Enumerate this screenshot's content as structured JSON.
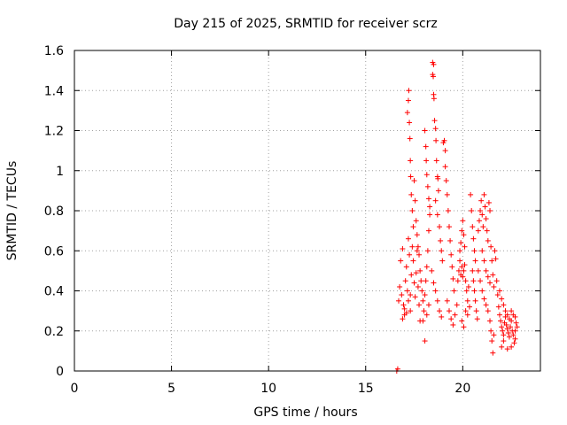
{
  "chart_data": {
    "type": "scatter",
    "title": "Day 215 of 2025, SRMTID for receiver scrz",
    "xlabel": "GPS time / hours",
    "ylabel": "SRMTID / TECUs",
    "xlim": [
      0,
      24
    ],
    "ylim": [
      0,
      1.6
    ],
    "xticks": [
      0,
      5,
      10,
      15,
      20
    ],
    "yticks": [
      0,
      0.2,
      0.4,
      0.6,
      0.8,
      1,
      1.2,
      1.4,
      1.6
    ],
    "xtick_labels": [
      "0",
      "5",
      "10",
      "15",
      "20"
    ],
    "ytick_labels": [
      "0",
      "0.2",
      "0.4",
      "0.6",
      "0.8",
      "1",
      "1.2",
      "1.4",
      "1.6"
    ],
    "grid": true,
    "marker": "+",
    "color": "#ff0000",
    "series": [
      {
        "name": "SRMTID",
        "points": [
          [
            16.6,
            0.0
          ],
          [
            16.65,
            0.01
          ],
          [
            16.7,
            0.35
          ],
          [
            16.75,
            0.42
          ],
          [
            16.8,
            0.55
          ],
          [
            16.85,
            0.38
          ],
          [
            16.9,
            0.61
          ],
          [
            16.95,
            0.33
          ],
          [
            17.0,
            0.28
          ],
          [
            17.05,
            0.45
          ],
          [
            17.1,
            0.52
          ],
          [
            17.15,
            0.4
          ],
          [
            17.2,
            0.66
          ],
          [
            17.25,
            0.58
          ],
          [
            17.3,
            0.3
          ],
          [
            17.35,
            0.48
          ],
          [
            17.4,
            0.62
          ],
          [
            17.45,
            0.55
          ],
          [
            17.5,
            0.44
          ],
          [
            17.55,
            0.37
          ],
          [
            17.6,
            0.49
          ],
          [
            17.65,
            0.6
          ],
          [
            17.7,
            0.42
          ],
          [
            17.75,
            0.33
          ],
          [
            17.8,
            0.25
          ],
          [
            16.9,
            0.26
          ],
          [
            17.0,
            0.31
          ],
          [
            17.1,
            0.29
          ],
          [
            17.2,
            0.35
          ],
          [
            17.3,
            0.38
          ],
          [
            17.15,
            1.29
          ],
          [
            17.2,
            1.35
          ],
          [
            17.22,
            1.4
          ],
          [
            17.25,
            1.24
          ],
          [
            17.28,
            1.16
          ],
          [
            17.3,
            1.05
          ],
          [
            17.32,
            0.97
          ],
          [
            17.35,
            0.88
          ],
          [
            17.4,
            0.8
          ],
          [
            17.45,
            0.72
          ],
          [
            17.5,
            0.95
          ],
          [
            17.55,
            0.85
          ],
          [
            17.6,
            0.75
          ],
          [
            17.65,
            0.68
          ],
          [
            17.7,
            0.62
          ],
          [
            17.75,
            0.58
          ],
          [
            17.8,
            0.5
          ],
          [
            17.85,
            0.45
          ],
          [
            17.9,
            0.4
          ],
          [
            17.95,
            0.35
          ],
          [
            18.0,
            0.3
          ],
          [
            18.05,
            0.38
          ],
          [
            18.1,
            0.45
          ],
          [
            18.15,
            0.52
          ],
          [
            18.2,
            0.6
          ],
          [
            18.25,
            0.7
          ],
          [
            18.3,
            0.82
          ],
          [
            18.05,
            1.2
          ],
          [
            18.1,
            1.12
          ],
          [
            18.12,
            1.05
          ],
          [
            18.15,
            0.98
          ],
          [
            18.2,
            0.92
          ],
          [
            18.25,
            0.86
          ],
          [
            18.3,
            0.78
          ],
          [
            17.95,
            0.25
          ],
          [
            18.05,
            0.15
          ],
          [
            18.15,
            0.28
          ],
          [
            18.25,
            0.33
          ],
          [
            18.45,
            1.54
          ],
          [
            18.5,
            1.53
          ],
          [
            18.45,
            1.48
          ],
          [
            18.48,
            1.47
          ],
          [
            18.5,
            1.38
          ],
          [
            18.52,
            1.36
          ],
          [
            18.55,
            1.25
          ],
          [
            18.6,
            1.21
          ],
          [
            18.62,
            1.15
          ],
          [
            18.65,
            1.05
          ],
          [
            18.7,
            0.97
          ],
          [
            18.72,
            0.96
          ],
          [
            18.75,
            0.9
          ],
          [
            18.6,
            0.85
          ],
          [
            18.7,
            0.78
          ],
          [
            18.8,
            0.72
          ],
          [
            18.85,
            0.65
          ],
          [
            18.9,
            0.6
          ],
          [
            18.95,
            0.55
          ],
          [
            18.4,
            0.5
          ],
          [
            18.5,
            0.44
          ],
          [
            18.6,
            0.4
          ],
          [
            18.7,
            0.35
          ],
          [
            18.8,
            0.3
          ],
          [
            18.9,
            0.27
          ],
          [
            19.0,
            1.14
          ],
          [
            19.05,
            1.15
          ],
          [
            19.1,
            1.1
          ],
          [
            19.1,
            1.02
          ],
          [
            19.15,
            0.95
          ],
          [
            19.2,
            0.88
          ],
          [
            19.25,
            0.8
          ],
          [
            19.3,
            0.72
          ],
          [
            19.35,
            0.65
          ],
          [
            19.4,
            0.58
          ],
          [
            19.45,
            0.52
          ],
          [
            19.5,
            0.46
          ],
          [
            19.55,
            0.4
          ],
          [
            19.2,
            0.35
          ],
          [
            19.3,
            0.3
          ],
          [
            19.4,
            0.26
          ],
          [
            19.5,
            0.23
          ],
          [
            19.6,
            0.28
          ],
          [
            19.7,
            0.33
          ],
          [
            19.75,
            0.45
          ],
          [
            19.8,
            0.5
          ],
          [
            19.85,
            0.55
          ],
          [
            19.9,
            0.48
          ],
          [
            19.95,
            0.52
          ],
          [
            20.0,
            0.47
          ],
          [
            20.05,
            0.5
          ],
          [
            20.1,
            0.53
          ],
          [
            20.15,
            0.45
          ],
          [
            20.2,
            0.4
          ],
          [
            20.25,
            0.35
          ],
          [
            20.3,
            0.42
          ],
          [
            19.85,
            0.6
          ],
          [
            19.9,
            0.64
          ],
          [
            19.95,
            0.7
          ],
          [
            20.0,
            0.75
          ],
          [
            20.05,
            0.68
          ],
          [
            20.1,
            0.62
          ],
          [
            19.95,
            0.25
          ],
          [
            20.05,
            0.22
          ],
          [
            20.15,
            0.3
          ],
          [
            20.25,
            0.28
          ],
          [
            20.35,
            0.32
          ],
          [
            20.4,
            0.88
          ],
          [
            20.45,
            0.8
          ],
          [
            20.5,
            0.72
          ],
          [
            20.55,
            0.66
          ],
          [
            20.6,
            0.6
          ],
          [
            20.65,
            0.55
          ],
          [
            20.5,
            0.5
          ],
          [
            20.55,
            0.45
          ],
          [
            20.6,
            0.4
          ],
          [
            20.65,
            0.35
          ],
          [
            20.7,
            0.3
          ],
          [
            20.75,
            0.26
          ],
          [
            20.8,
            0.7
          ],
          [
            20.85,
            0.75
          ],
          [
            20.9,
            0.8
          ],
          [
            20.95,
            0.85
          ],
          [
            21.0,
            0.78
          ],
          [
            21.05,
            0.72
          ],
          [
            21.1,
            0.88
          ],
          [
            21.15,
            0.82
          ],
          [
            21.2,
            0.76
          ],
          [
            21.25,
            0.7
          ],
          [
            21.3,
            0.65
          ],
          [
            21.35,
            0.84
          ],
          [
            21.4,
            0.8
          ],
          [
            21.45,
            0.62
          ],
          [
            21.5,
            0.55
          ],
          [
            21.55,
            0.48
          ],
          [
            21.6,
            0.42
          ],
          [
            20.8,
            0.5
          ],
          [
            20.9,
            0.45
          ],
          [
            21.0,
            0.4
          ],
          [
            21.1,
            0.36
          ],
          [
            21.2,
            0.33
          ],
          [
            21.3,
            0.3
          ],
          [
            21.0,
            0.6
          ],
          [
            21.1,
            0.55
          ],
          [
            21.2,
            0.5
          ],
          [
            21.3,
            0.47
          ],
          [
            21.4,
            0.44
          ],
          [
            21.4,
            0.25
          ],
          [
            21.45,
            0.2
          ],
          [
            21.5,
            0.15
          ],
          [
            21.55,
            0.09
          ],
          [
            21.6,
            0.18
          ],
          [
            21.65,
            0.6
          ],
          [
            21.7,
            0.56
          ],
          [
            21.75,
            0.45
          ],
          [
            21.8,
            0.38
          ],
          [
            21.85,
            0.32
          ],
          [
            21.9,
            0.28
          ],
          [
            21.95,
            0.25
          ],
          [
            22.0,
            0.22
          ],
          [
            22.05,
            0.2
          ],
          [
            22.1,
            0.18
          ],
          [
            22.15,
            0.24
          ],
          [
            22.2,
            0.27
          ],
          [
            22.25,
            0.23
          ],
          [
            22.3,
            0.21
          ],
          [
            22.35,
            0.19
          ],
          [
            22.4,
            0.17
          ],
          [
            22.45,
            0.22
          ],
          [
            22.5,
            0.25
          ],
          [
            22.55,
            0.2
          ],
          [
            22.6,
            0.18
          ],
          [
            22.65,
            0.14
          ],
          [
            22.7,
            0.16
          ],
          [
            21.9,
            0.4
          ],
          [
            22.0,
            0.36
          ],
          [
            22.1,
            0.33
          ],
          [
            22.2,
            0.3
          ],
          [
            22.3,
            0.28
          ],
          [
            22.4,
            0.26
          ],
          [
            22.5,
            0.3
          ],
          [
            22.6,
            0.28
          ],
          [
            22.7,
            0.27
          ],
          [
            22.75,
            0.24
          ],
          [
            22.8,
            0.22
          ],
          [
            22.0,
            0.12
          ],
          [
            22.1,
            0.15
          ],
          [
            22.3,
            0.11
          ],
          [
            22.5,
            0.12
          ],
          [
            22.7,
            0.2
          ]
        ]
      }
    ]
  }
}
